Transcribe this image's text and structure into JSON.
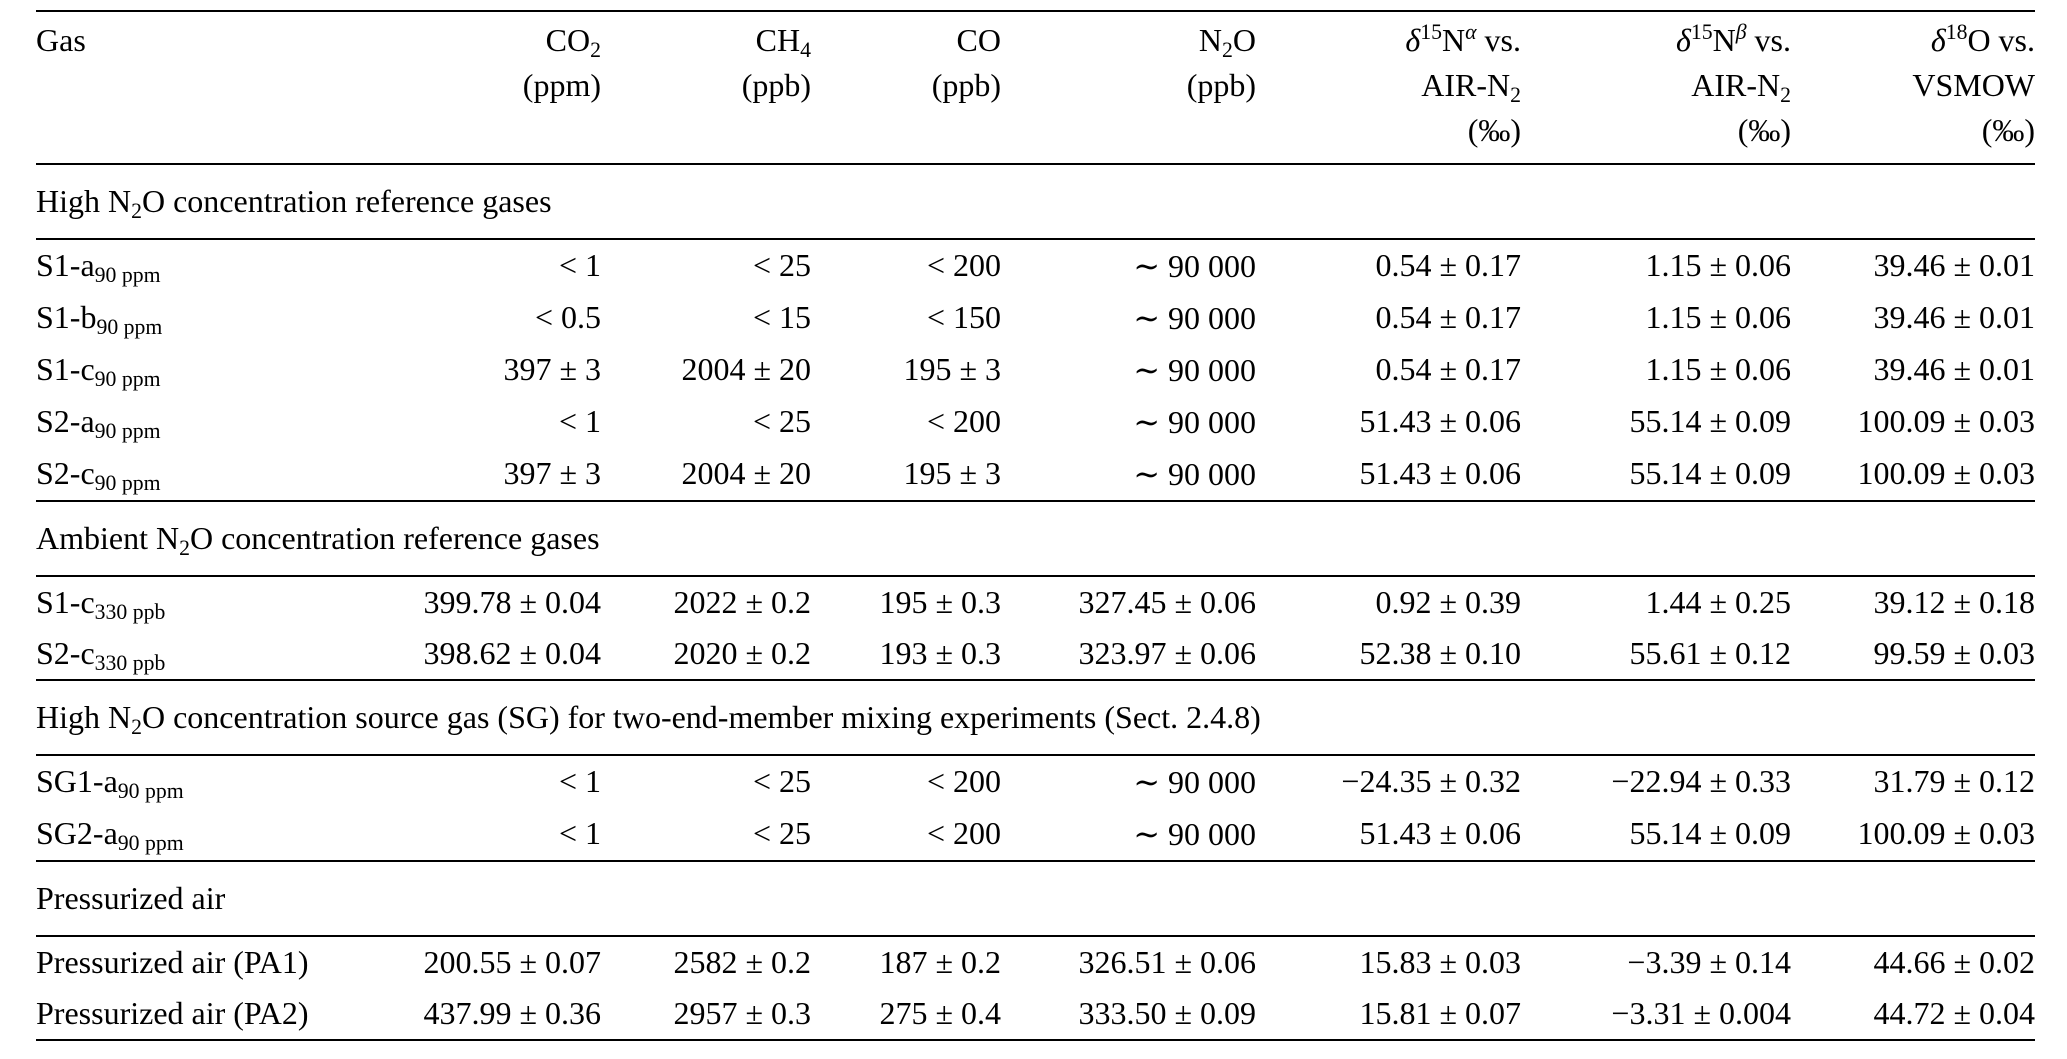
{
  "page": {
    "background": "#ffffff",
    "text_color": "#000000"
  },
  "table": {
    "columns": [
      {
        "name": "gas",
        "lines": [
          [
            {
              "t": "Gas"
            }
          ]
        ]
      },
      {
        "name": "co2-ppm",
        "lines": [
          [
            {
              "t": "CO"
            },
            {
              "t": "2",
              "s": "sub"
            }
          ],
          [
            {
              "t": "(ppm)"
            }
          ]
        ]
      },
      {
        "name": "ch4-ppb",
        "lines": [
          [
            {
              "t": "CH"
            },
            {
              "t": "4",
              "s": "sub"
            }
          ],
          [
            {
              "t": "(ppb)"
            }
          ]
        ]
      },
      {
        "name": "co-ppb",
        "lines": [
          [
            {
              "t": "CO"
            }
          ],
          [
            {
              "t": "(ppb)"
            }
          ]
        ]
      },
      {
        "name": "n2o-ppb",
        "lines": [
          [
            {
              "t": "N"
            },
            {
              "t": "2",
              "s": "sub"
            },
            {
              "t": "O"
            }
          ],
          [
            {
              "t": "(ppb)"
            }
          ]
        ]
      },
      {
        "name": "d15n-alpha",
        "lines": [
          [
            {
              "t": "δ",
              "i": true
            },
            {
              "t": "15",
              "s": "sup"
            },
            {
              "t": "N"
            },
            {
              "t": "α",
              "s": "sup",
              "i": true
            },
            {
              "t": " vs."
            }
          ],
          [
            {
              "t": "AIR-N"
            },
            {
              "t": "2",
              "s": "sub"
            }
          ],
          [
            {
              "t": "(‰)"
            }
          ]
        ]
      },
      {
        "name": "d15n-beta",
        "lines": [
          [
            {
              "t": "δ",
              "i": true
            },
            {
              "t": "15",
              "s": "sup"
            },
            {
              "t": "N"
            },
            {
              "t": "β",
              "s": "sup",
              "i": true
            },
            {
              "t": " vs."
            }
          ],
          [
            {
              "t": "AIR-N"
            },
            {
              "t": "2",
              "s": "sub"
            }
          ],
          [
            {
              "t": "(‰)"
            }
          ]
        ]
      },
      {
        "name": "d18o",
        "lines": [
          [
            {
              "t": "δ",
              "i": true
            },
            {
              "t": "18",
              "s": "sup"
            },
            {
              "t": "O vs."
            }
          ],
          [
            {
              "t": "VSMOW"
            }
          ],
          [
            {
              "t": "(‰)"
            }
          ]
        ]
      }
    ],
    "sections": [
      {
        "title": [
          {
            "t": "High N"
          },
          {
            "t": "2",
            "s": "sub"
          },
          {
            "t": "O concentration reference gases"
          }
        ],
        "rows": [
          {
            "label": [
              {
                "t": "S1-a"
              },
              {
                "t": "90 ppm",
                "s": "sub"
              }
            ],
            "values": [
              "< 1",
              "< 25",
              "< 200",
              "∼ 90 000",
              "0.54 ± 0.17",
              "1.15 ± 0.06",
              "39.46 ± 0.01"
            ]
          },
          {
            "label": [
              {
                "t": "S1-b"
              },
              {
                "t": "90 ppm",
                "s": "sub"
              }
            ],
            "values": [
              "< 0.5",
              "< 15",
              "< 150",
              "∼ 90 000",
              "0.54 ± 0.17",
              "1.15 ± 0.06",
              "39.46 ± 0.01"
            ]
          },
          {
            "label": [
              {
                "t": "S1-c"
              },
              {
                "t": "90 ppm",
                "s": "sub"
              }
            ],
            "values": [
              "397 ± 3",
              "2004 ± 20",
              "195 ± 3",
              "∼ 90 000",
              "0.54 ± 0.17",
              "1.15 ± 0.06",
              "39.46 ± 0.01"
            ]
          },
          {
            "label": [
              {
                "t": "S2-a"
              },
              {
                "t": "90 ppm",
                "s": "sub"
              }
            ],
            "values": [
              "< 1",
              "< 25",
              "< 200",
              "∼ 90 000",
              "51.43 ± 0.06",
              "55.14 ± 0.09",
              "100.09 ± 0.03"
            ]
          },
          {
            "label": [
              {
                "t": "S2-c"
              },
              {
                "t": "90 ppm",
                "s": "sub"
              }
            ],
            "values": [
              "397 ± 3",
              "2004 ± 20",
              "195 ± 3",
              "∼ 90 000",
              "51.43 ± 0.06",
              "55.14 ± 0.09",
              "100.09 ± 0.03"
            ]
          }
        ]
      },
      {
        "title": [
          {
            "t": "Ambient N"
          },
          {
            "t": "2",
            "s": "sub"
          },
          {
            "t": "O concentration reference gases"
          }
        ],
        "rows": [
          {
            "label": [
              {
                "t": "S1-c"
              },
              {
                "t": "330 ppb",
                "s": "sub"
              }
            ],
            "values": [
              "399.78 ± 0.04",
              "2022 ± 0.2",
              "195 ± 0.3",
              "327.45 ± 0.06",
              "0.92 ± 0.39",
              "1.44 ± 0.25",
              "39.12 ± 0.18"
            ]
          },
          {
            "label": [
              {
                "t": "S2-c"
              },
              {
                "t": "330 ppb",
                "s": "sub"
              }
            ],
            "values": [
              "398.62 ± 0.04",
              "2020 ± 0.2",
              "193 ± 0.3",
              "323.97 ± 0.06",
              "52.38 ± 0.10",
              "55.61 ± 0.12",
              "99.59 ± 0.03"
            ]
          }
        ]
      },
      {
        "title": [
          {
            "t": "High N"
          },
          {
            "t": "2",
            "s": "sub"
          },
          {
            "t": "O concentration source gas (SG) for two-end-member mixing experiments (Sect. 2.4.8)"
          }
        ],
        "rows": [
          {
            "label": [
              {
                "t": "SG1-a"
              },
              {
                "t": "90 ppm",
                "s": "sub"
              }
            ],
            "values": [
              "< 1",
              "< 25",
              "< 200",
              "∼ 90 000",
              "−24.35 ± 0.32",
              "−22.94 ± 0.33",
              "31.79 ± 0.12"
            ]
          },
          {
            "label": [
              {
                "t": "SG2-a"
              },
              {
                "t": "90 ppm",
                "s": "sub"
              }
            ],
            "values": [
              "< 1",
              "< 25",
              "< 200",
              "∼ 90 000",
              "51.43 ± 0.06",
              "55.14 ± 0.09",
              "100.09 ± 0.03"
            ]
          }
        ]
      },
      {
        "title": [
          {
            "t": "Pressurized air"
          }
        ],
        "rows": [
          {
            "label": [
              {
                "t": "Pressurized air (PA1)"
              }
            ],
            "values": [
              "200.55 ± 0.07",
              "2582 ± 0.2",
              "187 ± 0.2",
              "326.51 ± 0.06",
              "15.83 ± 0.03",
              "−3.39 ± 0.14",
              "44.66 ± 0.02"
            ]
          },
          {
            "label": [
              {
                "t": "Pressurized air (PA2)"
              }
            ],
            "values": [
              "437.99 ± 0.36",
              "2957 ± 0.3",
              "275 ± 0.4",
              "333.50 ± 0.09",
              "15.81 ± 0.07",
              "−3.31 ± 0.004",
              "44.72 ± 0.04"
            ]
          }
        ]
      }
    ]
  }
}
